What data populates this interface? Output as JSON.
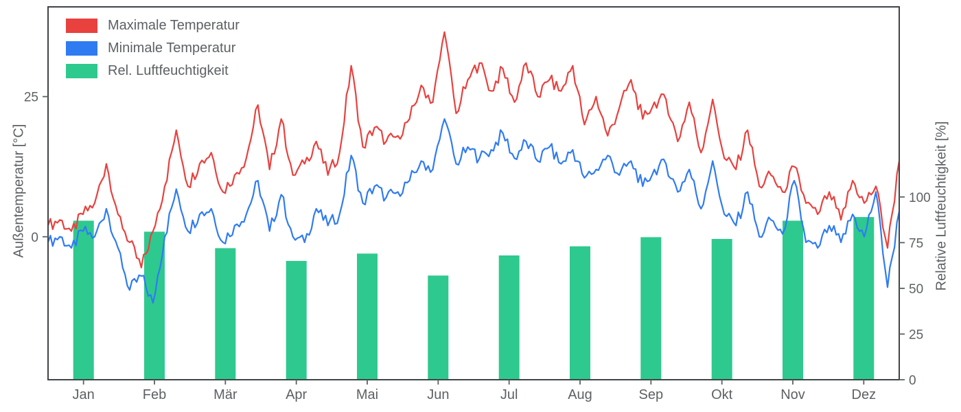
{
  "figure": {
    "background": "#ffffff",
    "spine_color": "#3f4446",
    "tick_color": "#5d6164",
    "label_color": "#5d6164"
  },
  "chart_data": {
    "type": "mixed",
    "title": "",
    "x_axis": {
      "unit": "day_of_year",
      "tick_labels": [
        "Jan",
        "Feb",
        "Mär",
        "Apr",
        "Mai",
        "Jun",
        "Jul",
        "Aug",
        "Sep",
        "Okt",
        "Nov",
        "Dez"
      ]
    },
    "left_axis": {
      "label": "Außentemperatur [°C]",
      "ticks": [
        0,
        25
      ],
      "range": [
        -25.5,
        41
      ]
    },
    "right_axis": {
      "label": "Relative Luftfeuchtigkeit [%]",
      "ticks": [
        0,
        25,
        50,
        75,
        100
      ],
      "range": [
        0,
        204
      ]
    },
    "legend_position": "upper left",
    "series": [
      {
        "name": "Maximale Temperatur",
        "type": "line",
        "axis": "left",
        "color": "#e8413e",
        "sample_step_days": 5,
        "values": [
          2,
          3,
          1,
          4,
          6,
          13,
          4,
          -1,
          -5.5,
          1,
          9,
          19,
          9,
          13,
          15,
          8,
          11,
          14,
          23.5,
          12,
          21,
          11,
          13,
          17,
          11,
          15,
          30.5,
          16,
          19.5,
          17,
          18,
          21,
          27,
          24,
          36.5,
          22,
          28,
          31,
          26,
          30,
          24,
          31,
          25,
          28,
          26,
          30.5,
          20,
          25,
          18,
          23,
          28,
          21,
          24,
          24.5,
          17,
          24,
          15,
          24.5,
          14,
          12,
          19,
          9,
          11,
          8,
          12.5,
          6,
          4,
          8,
          3,
          10,
          6,
          9,
          -2,
          13.5
        ]
      },
      {
        "name": "Minimale Temperatur",
        "type": "line",
        "axis": "left",
        "color": "#2f7bf2",
        "sample_step_days": 5,
        "values": [
          -1,
          0,
          -2,
          1,
          0,
          5,
          -2,
          -9.5,
          -7,
          -11.8,
          0,
          8.5,
          1,
          4,
          5,
          -1,
          2,
          4,
          10,
          1,
          7.5,
          0,
          -1,
          5,
          2,
          4,
          14.5,
          6,
          9,
          7,
          8,
          10,
          13.5,
          12,
          21,
          13,
          16,
          14,
          15.5,
          18.5,
          14,
          17,
          13.5,
          16,
          13,
          15.5,
          10.5,
          12,
          14.5,
          11,
          13.5,
          9,
          12,
          13,
          8,
          12,
          5,
          13.5,
          4,
          2,
          8,
          0,
          3,
          0.5,
          10,
          -1,
          -2,
          2,
          -1,
          4,
          0,
          8,
          -9,
          4.5
        ]
      },
      {
        "name": "Rel. Luftfeuchtigkeit",
        "type": "bar",
        "axis": "right",
        "color": "#2ec98e",
        "categories": [
          "Jan",
          "Feb",
          "Mär",
          "Apr",
          "Mai",
          "Jun",
          "Jul",
          "Aug",
          "Sep",
          "Okt",
          "Nov",
          "Dez"
        ],
        "values": [
          87,
          81,
          72,
          65,
          69,
          57,
          68,
          73,
          78,
          77,
          87,
          89
        ]
      }
    ]
  }
}
